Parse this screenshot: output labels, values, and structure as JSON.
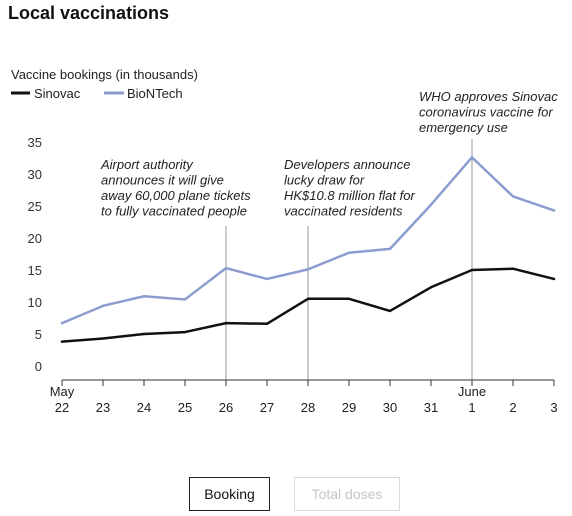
{
  "title": "Local vaccinations",
  "buttons": {
    "booking": "Booking",
    "total_doses": "Total doses"
  },
  "colors": {
    "sinovac": "#111111",
    "biontech": "#8c9ccf",
    "annotation_line": "#9a9a9a",
    "axis": "#333333"
  },
  "chart_data": {
    "type": "line",
    "ylabel": "Vaccine bookings (in thousands)",
    "ylim": [
      0,
      35
    ],
    "yticks": [
      0,
      5,
      10,
      15,
      20,
      25,
      30,
      35
    ],
    "grid": false,
    "legend": "top-left",
    "x": [
      "May 22",
      "May 23",
      "May 24",
      "May 25",
      "May 26",
      "May 27",
      "May 28",
      "May 29",
      "May 30",
      "May 31",
      "June 1",
      "June 2",
      "June 3"
    ],
    "x_tick_labels": [
      "22",
      "23",
      "24",
      "25",
      "26",
      "27",
      "28",
      "29",
      "30",
      "31",
      "1",
      "2",
      "3"
    ],
    "month_labels": [
      {
        "at": "May 22",
        "label": "May"
      },
      {
        "at": "June 1",
        "label": "June"
      }
    ],
    "series": [
      {
        "name": "Sinovac",
        "values": [
          3.8,
          4.3,
          5.0,
          5.3,
          6.7,
          6.6,
          10.5,
          10.5,
          8.6,
          12.3,
          15.0,
          15.2,
          13.6
        ]
      },
      {
        "name": "BioNTech",
        "values": [
          6.7,
          9.4,
          10.9,
          10.4,
          15.3,
          13.6,
          15.1,
          17.7,
          18.3,
          25.2,
          32.6,
          26.5,
          24.3
        ]
      }
    ],
    "annotations": [
      {
        "at": "May 26",
        "lines": [
          "Airport authority",
          "announces it will give",
          "away 60,000 plane tickets",
          "to fully vaccinated people"
        ]
      },
      {
        "at": "May 28",
        "lines": [
          "Developers announce",
          "lucky draw for",
          "HK$10.8 million flat for",
          "vaccinated residents"
        ]
      },
      {
        "at": "June 1",
        "lines": [
          "WHO approves Sinovac",
          "coronavirus vaccine for",
          "emergency use"
        ]
      }
    ]
  }
}
